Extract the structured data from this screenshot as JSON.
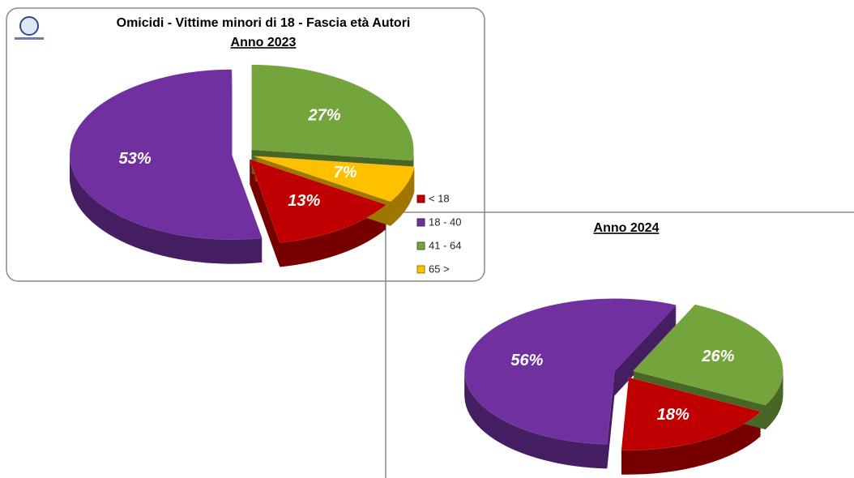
{
  "chart_data": [
    {
      "type": "pie",
      "title": "Omicidi - Vittime minori di 18 - Fascia età Autori",
      "subtitle": "Anno 2023",
      "categories": [
        "< 18",
        "18 - 40",
        "41 - 64",
        "65 >"
      ],
      "values": [
        13,
        53,
        27,
        7
      ],
      "value_labels": [
        "13%",
        "53%",
        "27%",
        "7%"
      ],
      "colors": [
        "#c00000",
        "#7030a0",
        "#74a43c",
        "#ffc000"
      ],
      "legend": "right"
    },
    {
      "type": "pie",
      "subtitle": "Anno 2024",
      "categories": [
        "< 18",
        "18 - 40",
        "41 - 64"
      ],
      "values": [
        18,
        56,
        26
      ],
      "value_labels": [
        "18%",
        "56%",
        "26%"
      ],
      "colors": [
        "#c00000",
        "#7030a0",
        "#74a43c"
      ]
    }
  ]
}
